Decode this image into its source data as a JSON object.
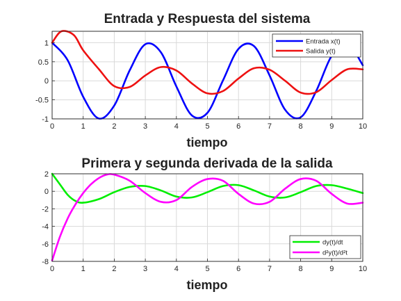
{
  "chart_data": [
    {
      "type": "line",
      "title": "Entrada y Respuesta del sistema",
      "xlabel": "tiempo",
      "ylabel": "",
      "xlim": [
        0,
        10
      ],
      "ylim": [
        -1,
        1.3
      ],
      "xticks": [
        "0",
        "1",
        "2",
        "3",
        "4",
        "5",
        "6",
        "7",
        "8",
        "9",
        "10"
      ],
      "yticks": [
        "1",
        "0.5",
        "0",
        "-0.5",
        "-1"
      ],
      "grid": true,
      "legend_position": "top-right",
      "series": [
        {
          "name": "Entrada x(t)",
          "color": "#0000ff",
          "x": [
            0,
            0.5,
            1,
            1.5,
            2,
            2.5,
            3,
            3.5,
            4,
            4.5,
            5,
            5.5,
            6,
            6.5,
            7,
            7.5,
            8,
            8.5,
            9,
            9.5,
            10
          ],
          "y": [
            1,
            0.54,
            -0.42,
            -0.99,
            -0.65,
            0.28,
            0.96,
            0.75,
            -0.15,
            -0.91,
            -0.84,
            0.01,
            0.84,
            0.91,
            0.14,
            -0.76,
            -0.96,
            -0.27,
            0.66,
            0.99,
            0.41
          ]
        },
        {
          "name": "Salida y(t)",
          "color": "#ee1111",
          "x": [
            0,
            0.3,
            0.7,
            1,
            1.5,
            2,
            2.5,
            3,
            3.5,
            4,
            4.5,
            5,
            5.5,
            6,
            6.5,
            7,
            7.5,
            8,
            8.5,
            9,
            9.5,
            10
          ],
          "y": [
            1,
            1.3,
            1.2,
            0.8,
            0.31,
            -0.14,
            -0.16,
            0.14,
            0.36,
            0.27,
            -0.07,
            -0.33,
            -0.27,
            0.06,
            0.33,
            0.29,
            0.0,
            -0.31,
            -0.3,
            0.02,
            0.3,
            0.3
          ]
        }
      ]
    },
    {
      "type": "line",
      "title": "Primera y segunda derivada de la salida",
      "xlabel": "tiempo",
      "ylabel": "",
      "xlim": [
        0,
        10
      ],
      "ylim": [
        -8,
        2
      ],
      "xticks": [
        "0",
        "1",
        "2",
        "3",
        "4",
        "5",
        "6",
        "7",
        "8",
        "9",
        "10"
      ],
      "yticks": [
        "2",
        "0",
        "-2",
        "-4",
        "-6",
        "-8"
      ],
      "grid": true,
      "legend_position": "bottom-right",
      "series": [
        {
          "name": "dy(t)/dt",
          "color": "#00ee00",
          "x": [
            0,
            0.25,
            0.5,
            0.75,
            1,
            1.5,
            2,
            2.5,
            3,
            3.5,
            4,
            4.5,
            5,
            5.5,
            6,
            6.5,
            7,
            7.5,
            8,
            8.5,
            9,
            9.5,
            10
          ],
          "y": [
            2,
            0.8,
            -0.4,
            -1.1,
            -1.3,
            -0.9,
            -0.1,
            0.5,
            0.6,
            0.1,
            -0.6,
            -0.7,
            -0.1,
            0.6,
            0.7,
            0.1,
            -0.6,
            -0.7,
            -0.1,
            0.6,
            0.7,
            0.3,
            -0.2
          ]
        },
        {
          "name": "d²y(t)/d²t",
          "color": "#ff00ff",
          "x": [
            0,
            0.25,
            0.5,
            0.75,
            1,
            1.25,
            1.5,
            1.75,
            2,
            2.5,
            3,
            3.5,
            4,
            4.5,
            5,
            5.5,
            6,
            6.5,
            7,
            7.5,
            8,
            8.5,
            9,
            9.5,
            10
          ],
          "y": [
            -7.9,
            -5.2,
            -3.1,
            -1.5,
            -0.2,
            0.8,
            1.5,
            1.9,
            1.9,
            1.2,
            -0.2,
            -1.2,
            -1.0,
            0.5,
            1.4,
            1.2,
            -0.3,
            -1.4,
            -1.2,
            0.3,
            1.4,
            1.2,
            -0.3,
            -1.4,
            -1.3
          ]
        }
      ]
    }
  ]
}
